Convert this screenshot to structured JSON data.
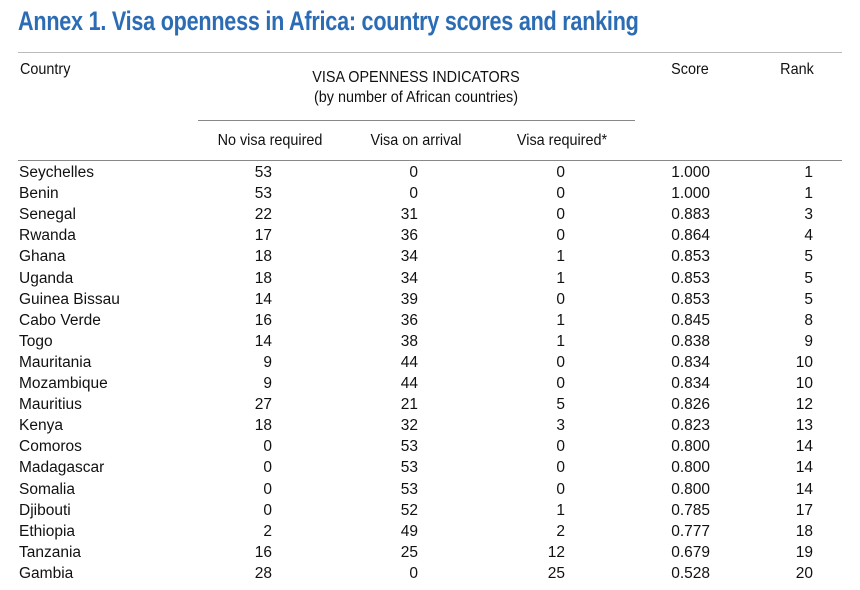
{
  "title": "Annex 1.  Visa openness in Africa: country scores and ranking",
  "header": {
    "country": "Country",
    "group": "VISA OPENNESS INDICATORS",
    "group_note": "(by number of African countries)",
    "columns": [
      "No visa required",
      "Visa on arrival",
      "Visa required*"
    ],
    "score": "Score",
    "rank": "Rank"
  },
  "table": {
    "rows": [
      [
        "Seychelles",
        "53",
        "0",
        "0",
        "1.000",
        "1"
      ],
      [
        "Benin",
        "53",
        "0",
        "0",
        "1.000",
        "1"
      ],
      [
        "Senegal",
        "22",
        "31",
        "0",
        "0.883",
        "3"
      ],
      [
        "Rwanda",
        "17",
        "36",
        "0",
        "0.864",
        "4"
      ],
      [
        "Ghana",
        "18",
        "34",
        "1",
        "0.853",
        "5"
      ],
      [
        "Uganda",
        "18",
        "34",
        "1",
        "0.853",
        "5"
      ],
      [
        "Guinea Bissau",
        "14",
        "39",
        "0",
        "0.853",
        "5"
      ],
      [
        "Cabo Verde",
        "16",
        "36",
        "1",
        "0.845",
        "8"
      ],
      [
        "Togo",
        "14",
        "38",
        "1",
        "0.838",
        "9"
      ],
      [
        "Mauritania",
        "9",
        "44",
        "0",
        "0.834",
        "10"
      ],
      [
        "Mozambique",
        "9",
        "44",
        "0",
        "0.834",
        "10"
      ],
      [
        "Mauritius",
        "27",
        "21",
        "5",
        "0.826",
        "12"
      ],
      [
        "Kenya",
        "18",
        "32",
        "3",
        "0.823",
        "13"
      ],
      [
        "Comoros",
        "0",
        "53",
        "0",
        "0.800",
        "14"
      ],
      [
        "Madagascar",
        "0",
        "53",
        "0",
        "0.800",
        "14"
      ],
      [
        "Somalia",
        "0",
        "53",
        "0",
        "0.800",
        "14"
      ],
      [
        "Djibouti",
        "0",
        "52",
        "1",
        "0.785",
        "17"
      ],
      [
        "Ethiopia",
        "2",
        "49",
        "2",
        "0.777",
        "18"
      ],
      [
        "Tanzania",
        "16",
        "25",
        "12",
        "0.679",
        "19"
      ],
      [
        "Gambia",
        "28",
        "0",
        "25",
        "0.528",
        "20"
      ]
    ]
  }
}
